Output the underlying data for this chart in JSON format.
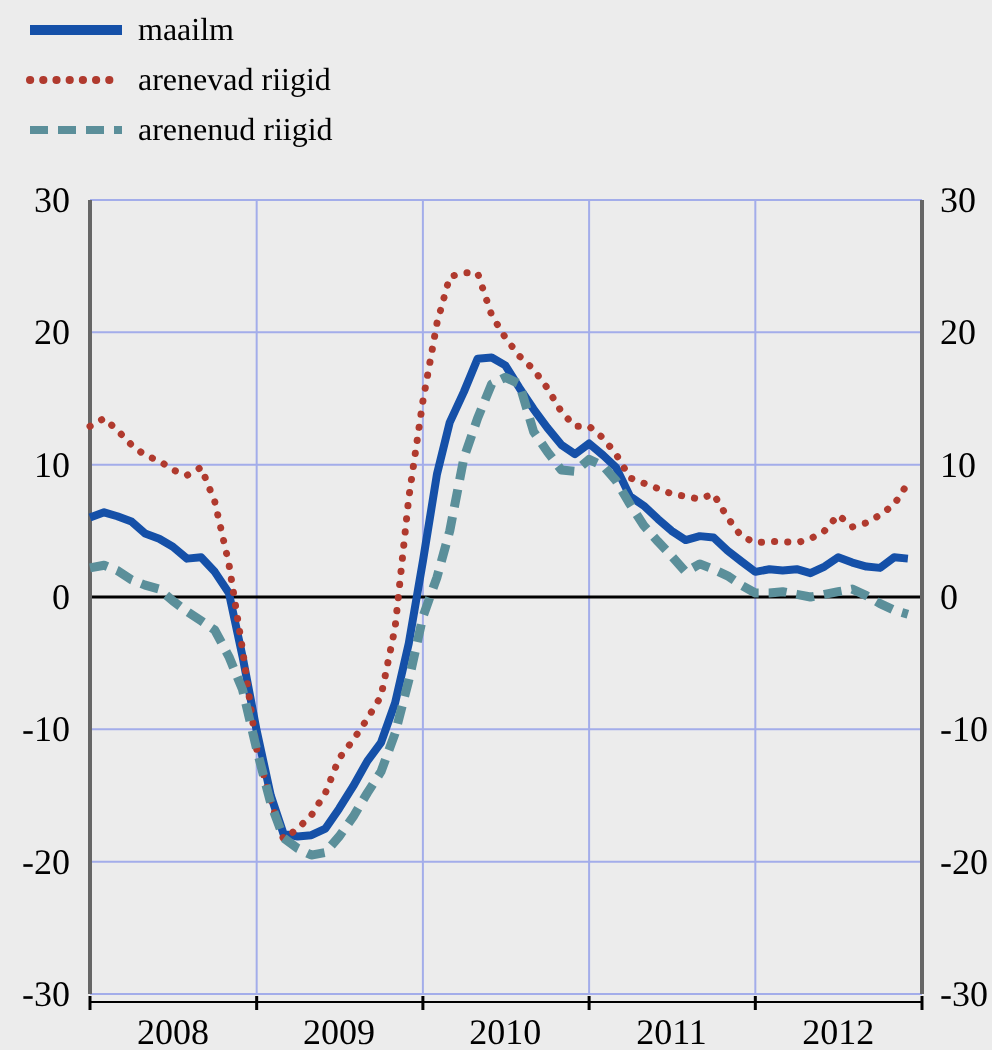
{
  "chart_data": {
    "type": "line",
    "x": [
      "2008-01",
      "2008-02",
      "2008-03",
      "2008-04",
      "2008-05",
      "2008-06",
      "2008-07",
      "2008-08",
      "2008-09",
      "2008-10",
      "2008-11",
      "2008-12",
      "2009-01",
      "2009-02",
      "2009-03",
      "2009-04",
      "2009-05",
      "2009-06",
      "2009-07",
      "2009-08",
      "2009-09",
      "2009-10",
      "2009-11",
      "2009-12",
      "2010-01",
      "2010-02",
      "2010-03",
      "2010-04",
      "2010-05",
      "2010-06",
      "2010-07",
      "2010-08",
      "2010-09",
      "2010-10",
      "2010-11",
      "2010-12",
      "2011-01",
      "2011-02",
      "2011-03",
      "2011-04",
      "2011-05",
      "2011-06",
      "2011-07",
      "2011-08",
      "2011-09",
      "2011-10",
      "2011-11",
      "2011-12",
      "2012-01",
      "2012-02",
      "2012-03",
      "2012-04",
      "2012-05",
      "2012-06",
      "2012-07",
      "2012-08",
      "2012-09",
      "2012-10",
      "2012-11",
      "2012-12"
    ],
    "series": [
      {
        "name": "maailm",
        "color": "#1550a8",
        "line_style": "solid",
        "values": [
          6.0,
          6.4,
          6.1,
          5.7,
          4.8,
          4.4,
          3.8,
          2.9,
          3.0,
          1.9,
          0.3,
          -4.5,
          -10.1,
          -15,
          -17.9,
          -18.1,
          -18.0,
          -17.5,
          -16.0,
          -14.3,
          -12.4,
          -11.0,
          -8,
          -3.5,
          2.7,
          9.3,
          13.2,
          15.5,
          18.0,
          18.1,
          17.5,
          15.8,
          14.2,
          12.8,
          11.5,
          10.8,
          11.6,
          10.7,
          9.8,
          7.6,
          6.9,
          5.9,
          5.0,
          4.3,
          4.6,
          4.5,
          3.5,
          2.7,
          1.9,
          2.1,
          2.0,
          2.1,
          1.8,
          2.3,
          3.0,
          2.6,
          2.3,
          2.2,
          3.0,
          2.9
        ]
      },
      {
        "name": "arenevad riigid",
        "color": "#b03a2e",
        "line_style": "dotted",
        "values": [
          12.9,
          13.5,
          12.6,
          11.5,
          10.7,
          10.3,
          9.6,
          9.2,
          9.8,
          7.2,
          2.5,
          -4,
          -11.5,
          -15.5,
          -18.3,
          -17.5,
          -16.5,
          -14.8,
          -12.2,
          -10.8,
          -9.2,
          -7.5,
          -2.3,
          7.5,
          14.8,
          20.7,
          24.2,
          24.5,
          24.5,
          21.3,
          19.6,
          18.2,
          17.2,
          15.8,
          14.0,
          12.9,
          12.9,
          12.0,
          10.8,
          9.0,
          8.6,
          8.2,
          7.8,
          7.6,
          7.4,
          7.8,
          6.0,
          4.6,
          4.1,
          4.2,
          4.2,
          4.1,
          4.4,
          5.0,
          6.2,
          5.3,
          5.6,
          6.2,
          7.0,
          8.6
        ]
      },
      {
        "name": "arenenud riigid",
        "color": "#5b8f9a",
        "line_style": "dashed",
        "values": [
          2.2,
          2.4,
          2.0,
          1.3,
          0.9,
          0.6,
          -0.3,
          -1.1,
          -1.8,
          -2.5,
          -4.5,
          -7,
          -11.5,
          -15.6,
          -18.2,
          -19.0,
          -19.5,
          -19.3,
          -18.1,
          -16.6,
          -14.8,
          -13.2,
          -10.3,
          -6.3,
          -1.5,
          1.5,
          5,
          10.5,
          13.5,
          16.1,
          16.6,
          16.1,
          12.5,
          11.0,
          9.6,
          9.5,
          10.4,
          9.9,
          8.8,
          7.0,
          5.4,
          4.2,
          3.1,
          1.9,
          2.5,
          2.1,
          1.6,
          0.9,
          0.3,
          0.3,
          0.4,
          0.2,
          0,
          0.2,
          0.4,
          0.6,
          0.1,
          -0.5,
          -1.0,
          -1.3
        ]
      }
    ],
    "xlim": [
      "2008-01",
      "2013-01"
    ],
    "xticks": [
      {
        "value": "2008-01",
        "label": null
      },
      {
        "value": "2008-07",
        "label": "2008"
      },
      {
        "value": "2009-01",
        "label": null
      },
      {
        "value": "2009-07",
        "label": "2009"
      },
      {
        "value": "2010-01",
        "label": null
      },
      {
        "value": "2010-07",
        "label": "2010"
      },
      {
        "value": "2011-01",
        "label": null
      },
      {
        "value": "2011-07",
        "label": "2011"
      },
      {
        "value": "2012-01",
        "label": null
      },
      {
        "value": "2012-07",
        "label": "2012"
      },
      {
        "value": "2013-01",
        "label": null
      }
    ],
    "ylim": [
      -30,
      30
    ],
    "yticks": [
      -30,
      -20,
      -10,
      0,
      10,
      20,
      30
    ],
    "y2lim": [
      -30,
      30
    ],
    "y2ticks": [
      -30,
      -20,
      -10,
      0,
      10,
      20,
      30
    ],
    "ref_lines": [
      {
        "axis": "y",
        "value": 0,
        "color": "#000000"
      }
    ],
    "grid": true,
    "legend": "top left",
    "marker": "none"
  }
}
